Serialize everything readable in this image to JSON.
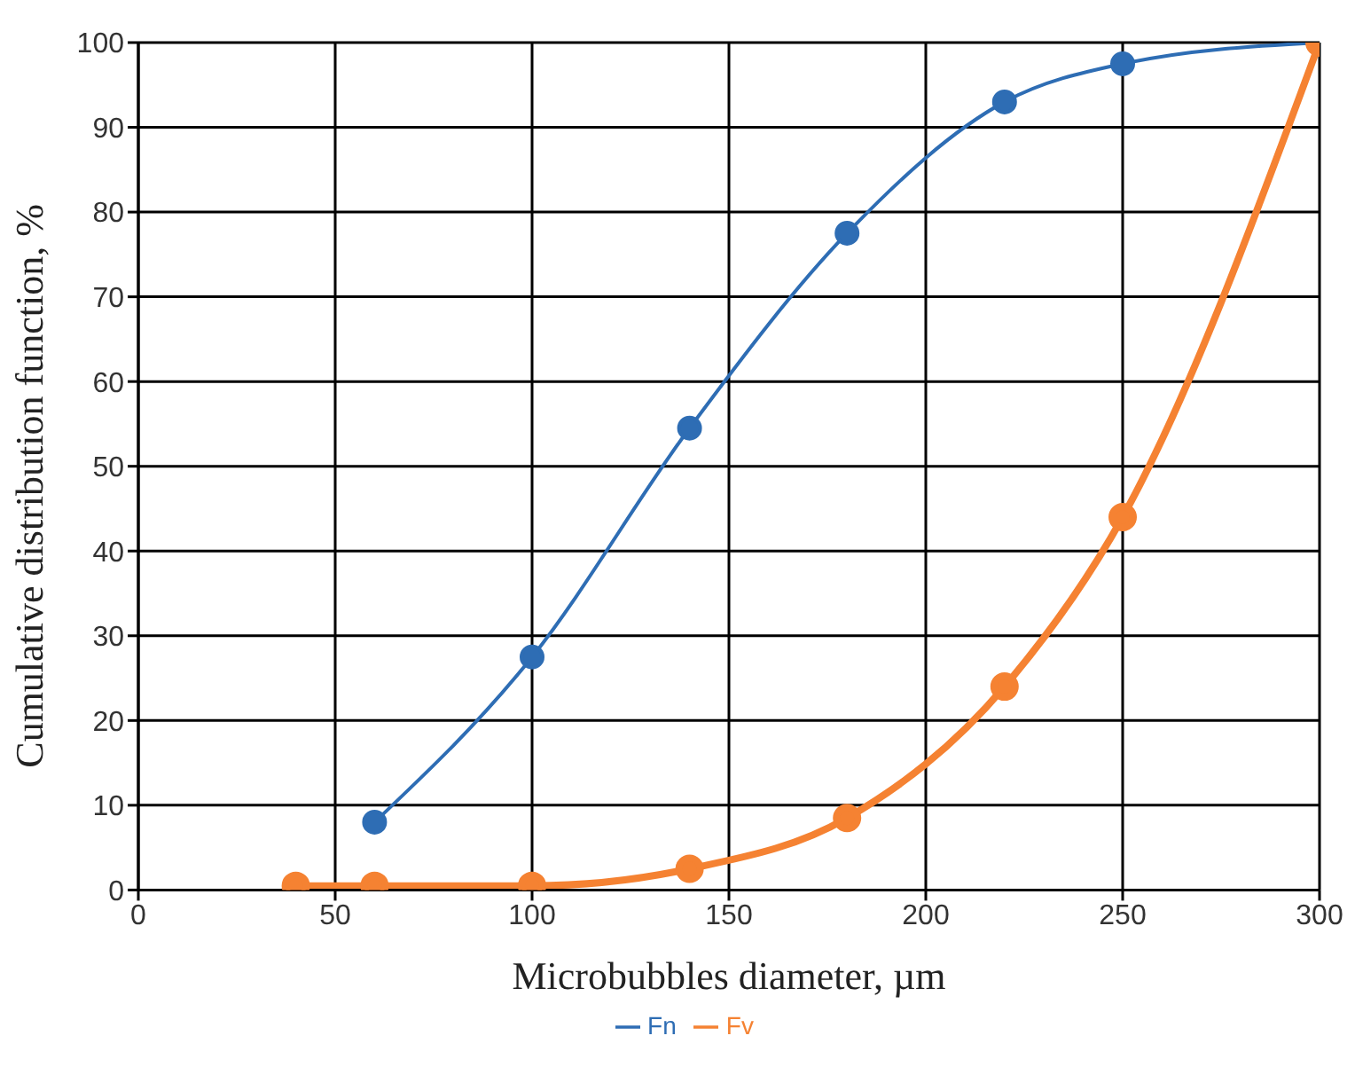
{
  "chart_data": {
    "type": "line",
    "xlabel": "Microbubbles diameter, µm",
    "ylabel": "Cumulative distribution function, %",
    "xlim": [
      0,
      300
    ],
    "xticks": [
      0,
      50,
      100,
      150,
      200,
      250,
      300
    ],
    "ylim": [
      0,
      100
    ],
    "yticks": [
      0,
      10,
      20,
      30,
      40,
      50,
      60,
      70,
      80,
      90,
      100
    ],
    "grid": true,
    "legend": "bottom",
    "marker": "circle",
    "line_style": "solid",
    "series": [
      {
        "name": "Fn",
        "color": "#2e6db4",
        "x": [
          60,
          100,
          140,
          180,
          220,
          250,
          300
        ],
        "values": [
          8,
          27.5,
          54.5,
          77.5,
          93,
          97.5,
          100
        ]
      },
      {
        "name": "Fv",
        "color": "#f58232",
        "x": [
          40,
          60,
          100,
          140,
          180,
          220,
          250,
          300
        ],
        "values": [
          0.5,
          0.5,
          0.5,
          2.5,
          8.5,
          24,
          44,
          100
        ]
      }
    ]
  }
}
